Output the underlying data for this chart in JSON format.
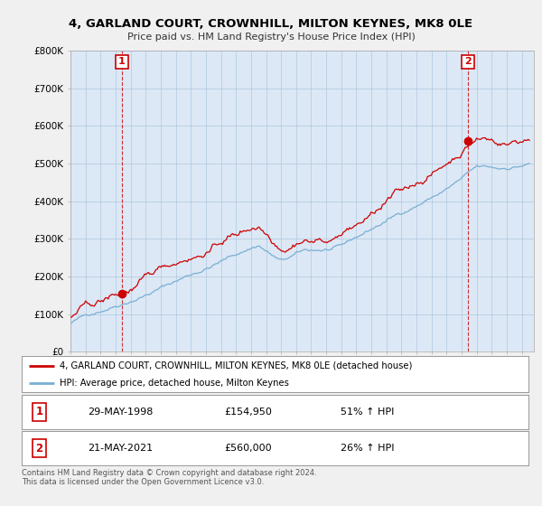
{
  "title_line1": "4, GARLAND COURT, CROWNHILL, MILTON KEYNES, MK8 0LE",
  "title_line2": "Price paid vs. HM Land Registry's House Price Index (HPI)",
  "ylim": [
    0,
    800000
  ],
  "yticks": [
    0,
    100000,
    200000,
    300000,
    400000,
    500000,
    600000,
    700000,
    800000
  ],
  "ytick_labels": [
    "£0",
    "£100K",
    "£200K",
    "£300K",
    "£400K",
    "£500K",
    "£600K",
    "£700K",
    "£800K"
  ],
  "background_color": "#f0f0f0",
  "plot_background": "#dce8f5",
  "grid_color": "#b0c8e0",
  "sale1_date": "29-MAY-1998",
  "sale1_price": 154950,
  "sale2_date": "21-MAY-2021",
  "sale2_price": 560000,
  "sale1_pct": "51% ↑ HPI",
  "sale2_pct": "26% ↑ HPI",
  "legend_line1": "4, GARLAND COURT, CROWNHILL, MILTON KEYNES, MK8 0LE (detached house)",
  "legend_line2": "HPI: Average price, detached house, Milton Keynes",
  "footer1": "Contains HM Land Registry data © Crown copyright and database right 2024.",
  "footer2": "This data is licensed under the Open Government Licence v3.0.",
  "red_color": "#cc0000",
  "blue_color": "#7aafd4",
  "sale1_price_label": "£154,950",
  "sale2_price_label": "£560,000"
}
